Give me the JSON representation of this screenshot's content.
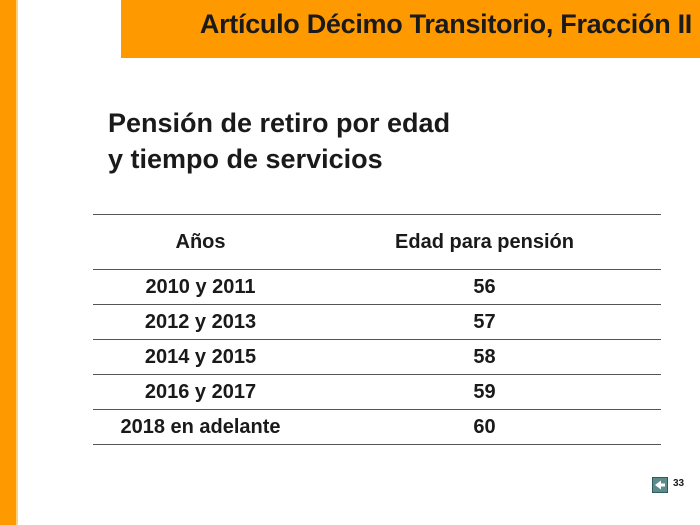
{
  "header": {
    "title": "Artículo Décimo Transitorio, Fracción II"
  },
  "subtitle": {
    "line1": "Pensión de retiro por edad",
    "line2": "y tiempo de servicios"
  },
  "table": {
    "headers": [
      "Años",
      "Edad para pensión"
    ],
    "rows": [
      [
        "2010 y 2011",
        "56"
      ],
      [
        "2012 y 2013",
        "57"
      ],
      [
        "2014 y 2015",
        "58"
      ],
      [
        "2016 y 2017",
        "59"
      ],
      [
        "2018 en adelante",
        "60"
      ]
    ]
  },
  "footer": {
    "page_number": "33",
    "nav_icon": "back-arrow-icon"
  },
  "colors": {
    "accent": "#ff9900",
    "text": "#1a1a1a",
    "rule": "#555555",
    "nav_icon": "#5a8c8c"
  }
}
